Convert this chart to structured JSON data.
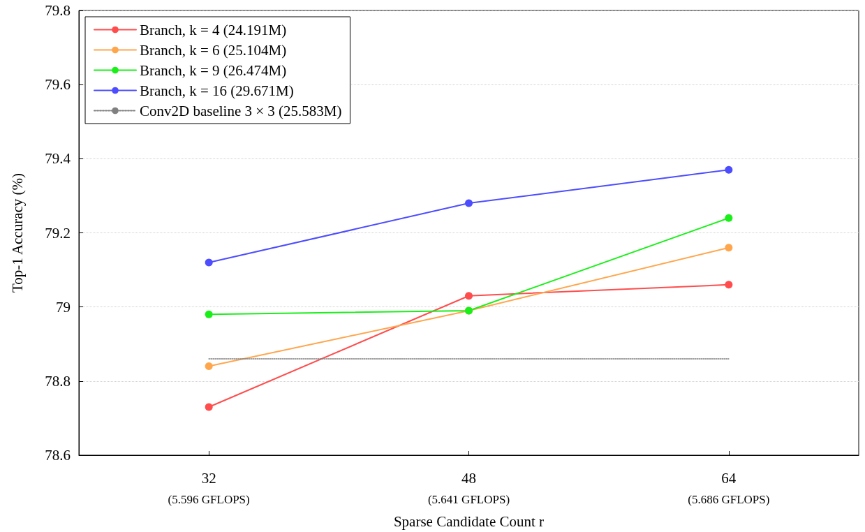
{
  "chart_data": {
    "type": "line",
    "xlabel": "Sparse Candidate Count r",
    "ylabel": "Top-1 Accuracy (%)",
    "categories": [
      "32\n(5.596 GFLOPS)",
      "48\n(5.641 GFLOPS)",
      "64\n(5.686 GFLOPS)"
    ],
    "ylim": [
      78.6,
      79.8
    ],
    "yticks": [
      78.6,
      78.8,
      79,
      79.2,
      79.4,
      79.6,
      79.8
    ],
    "series": [
      {
        "name": "Branch, k = 4 (24.191M)",
        "color": "#ff4d4d",
        "values": [
          78.73,
          79.03,
          79.06
        ]
      },
      {
        "name": "Branch, k = 6 (25.104M)",
        "color": "#ffa64d",
        "values": [
          78.84,
          78.99,
          79.16
        ]
      },
      {
        "name": "Branch, k = 9 (26.474M)",
        "color": "#1aef1a",
        "values": [
          78.98,
          78.99,
          79.24
        ]
      },
      {
        "name": "Branch, k = 16 (29.671M)",
        "color": "#4d4dff",
        "values": [
          79.12,
          79.28,
          79.37
        ]
      },
      {
        "name": "Conv2D baseline 3 × 3 (25.583M)",
        "color": "#808080",
        "values": [
          78.86,
          78.86,
          78.86
        ],
        "line_style": "dotted",
        "marker": "none"
      }
    ],
    "marker": "circle",
    "line_style": "solid",
    "grid": "y",
    "legend": "top left"
  }
}
